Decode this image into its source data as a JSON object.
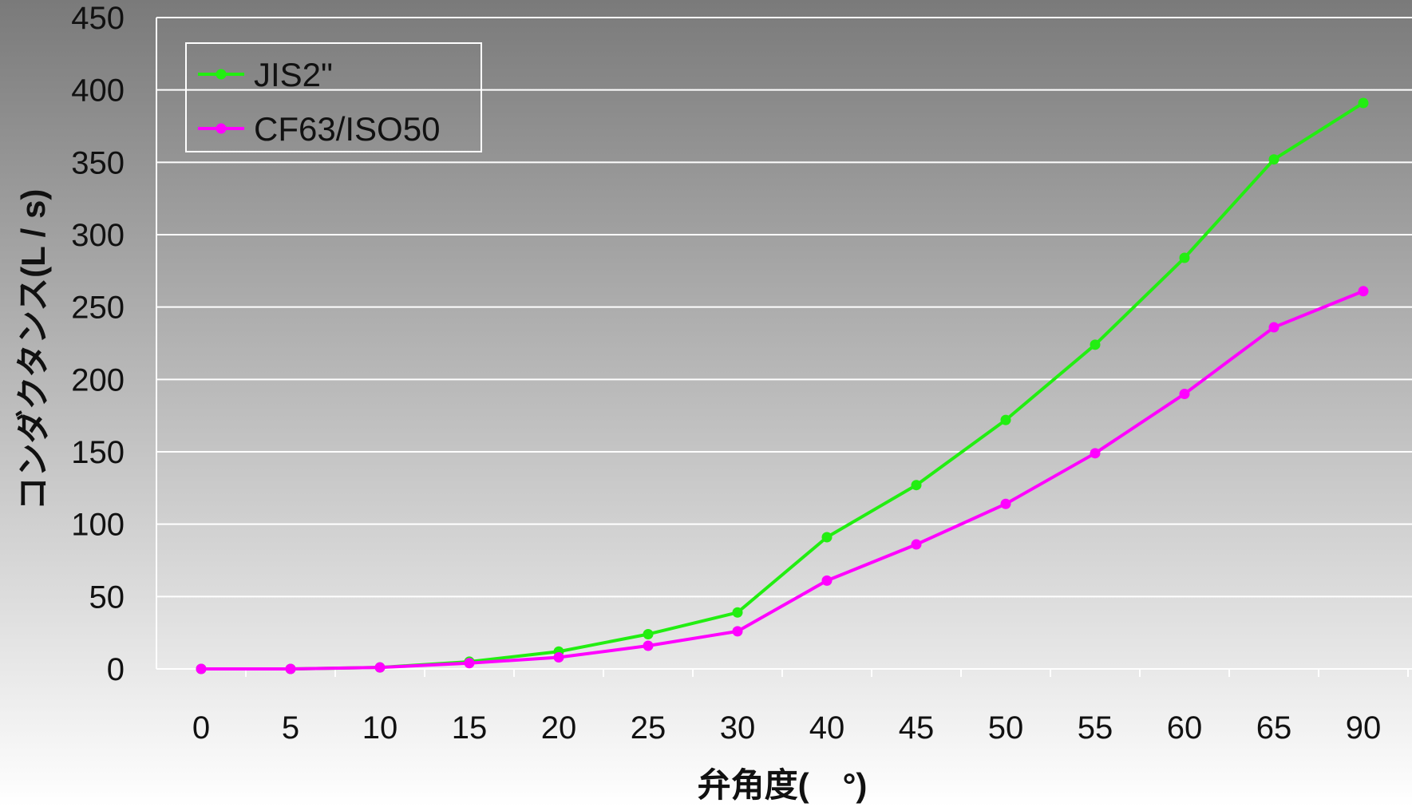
{
  "chart_data": {
    "type": "line",
    "title": "",
    "xlabel": "弁角度(　°)",
    "ylabel": "コンダクタンス(L / s)",
    "categories": [
      "0",
      "5",
      "10",
      "15",
      "20",
      "25",
      "30",
      "40",
      "45",
      "50",
      "55",
      "60",
      "65",
      "90"
    ],
    "ylim": [
      0,
      450
    ],
    "yticks": [
      0,
      50,
      100,
      150,
      200,
      250,
      300,
      350,
      400,
      450
    ],
    "grid": "horizontal",
    "legend_position": "top-left",
    "series": [
      {
        "name": "JIS2\"",
        "color": "#22ee11",
        "values": [
          0,
          0,
          1,
          5,
          12,
          24,
          39,
          91,
          127,
          172,
          224,
          284,
          352,
          391
        ]
      },
      {
        "name": "CF63/ISO50",
        "color": "#ff00ff",
        "values": [
          0,
          0,
          1,
          4,
          8,
          16,
          26,
          61,
          86,
          114,
          149,
          190,
          236,
          261
        ]
      }
    ]
  }
}
